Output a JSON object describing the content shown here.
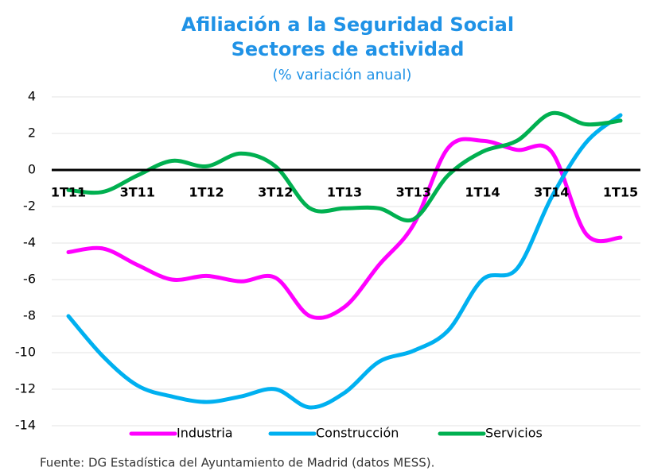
{
  "chart_data": {
    "type": "line",
    "title": "Afiliación a la Seguridad Social",
    "subtitle": "Sectores de actividad",
    "unit_note": "(% variación anual)",
    "source": "Fuente: DG Estadística del Ayuntamiento de Madrid (datos MESS).",
    "categories": [
      "1T11",
      null,
      "3T11",
      null,
      "1T12",
      null,
      "3T12",
      null,
      "1T13",
      null,
      "3T13",
      null,
      "1T14",
      null,
      "3T14",
      null,
      "1T15"
    ],
    "series": [
      {
        "name": "Industria",
        "color": "#ff00ff",
        "values": [
          -4.5,
          -4.3,
          -5.2,
          -6.0,
          -5.8,
          -6.1,
          -5.9,
          -8.0,
          -7.5,
          -5.2,
          -3.0,
          1.2,
          1.6,
          1.1,
          1.0,
          -3.5,
          -3.7
        ]
      },
      {
        "name": "Construcción",
        "color": "#00b0f0",
        "values": [
          -8.0,
          -10.2,
          -11.8,
          -12.4,
          -12.7,
          -12.4,
          -12.0,
          -13.0,
          -12.2,
          -10.5,
          -9.9,
          -8.8,
          -6.0,
          -5.4,
          -1.5,
          1.5,
          3.0
        ]
      },
      {
        "name": "Servicios",
        "color": "#00b050",
        "values": [
          -1.1,
          -1.2,
          -0.3,
          0.5,
          0.2,
          0.9,
          0.2,
          -2.1,
          -2.1,
          -2.1,
          -2.7,
          -0.3,
          1.0,
          1.6,
          3.1,
          2.5,
          2.7
        ]
      }
    ],
    "ylim": [
      -14,
      4
    ],
    "yticks": [
      -14,
      -12,
      -10,
      -8,
      -6,
      -4,
      -2,
      0,
      2,
      4
    ],
    "grid": true,
    "legend": "bottom"
  }
}
